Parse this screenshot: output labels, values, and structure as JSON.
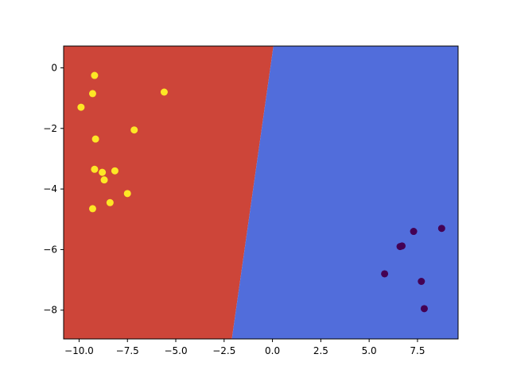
{
  "chart_data": {
    "type": "scatter",
    "title": "",
    "xlabel": "",
    "ylabel": "",
    "xlim": [
      -10.8,
      9.6
    ],
    "ylim": [
      -8.95,
      0.72
    ],
    "grid": false,
    "legend": "none",
    "x_ticks": [
      -10.0,
      -7.5,
      -5.0,
      -2.5,
      0.0,
      2.5,
      5.0,
      7.5
    ],
    "x_tick_labels": [
      "−10.0",
      "−7.5",
      "−5.0",
      "−2.5",
      "0.0",
      "2.5",
      "5.0",
      "7.5"
    ],
    "y_ticks": [
      0,
      -2,
      -4,
      -6,
      -8
    ],
    "y_tick_labels": [
      "0",
      "−2",
      "−4",
      "−6",
      "−8"
    ],
    "decision_regions": {
      "boundary": [
        [
          -2.1,
          -8.95
        ],
        [
          0.05,
          0.72
        ]
      ],
      "left_color": "#cd4539",
      "right_color": "#516ddb"
    },
    "series": [
      {
        "color": "#fde725",
        "points": [
          [
            -9.2,
            -0.25
          ],
          [
            -9.3,
            -0.85
          ],
          [
            -9.9,
            -1.3
          ],
          [
            -9.15,
            -2.35
          ],
          [
            -9.2,
            -3.35
          ],
          [
            -8.8,
            -3.45
          ],
          [
            -8.7,
            -3.7
          ],
          [
            -8.15,
            -3.4
          ],
          [
            -7.5,
            -4.15
          ],
          [
            -8.4,
            -4.45
          ],
          [
            -9.3,
            -4.65
          ],
          [
            -7.15,
            -2.05
          ],
          [
            -5.6,
            -0.8
          ]
        ]
      },
      {
        "color": "#440154",
        "points": [
          [
            8.75,
            -5.3
          ],
          [
            7.3,
            -5.4
          ],
          [
            6.6,
            -5.9
          ],
          [
            6.7,
            -5.88
          ],
          [
            5.8,
            -6.8
          ],
          [
            7.7,
            -7.05
          ],
          [
            7.85,
            -7.95
          ]
        ]
      }
    ]
  }
}
